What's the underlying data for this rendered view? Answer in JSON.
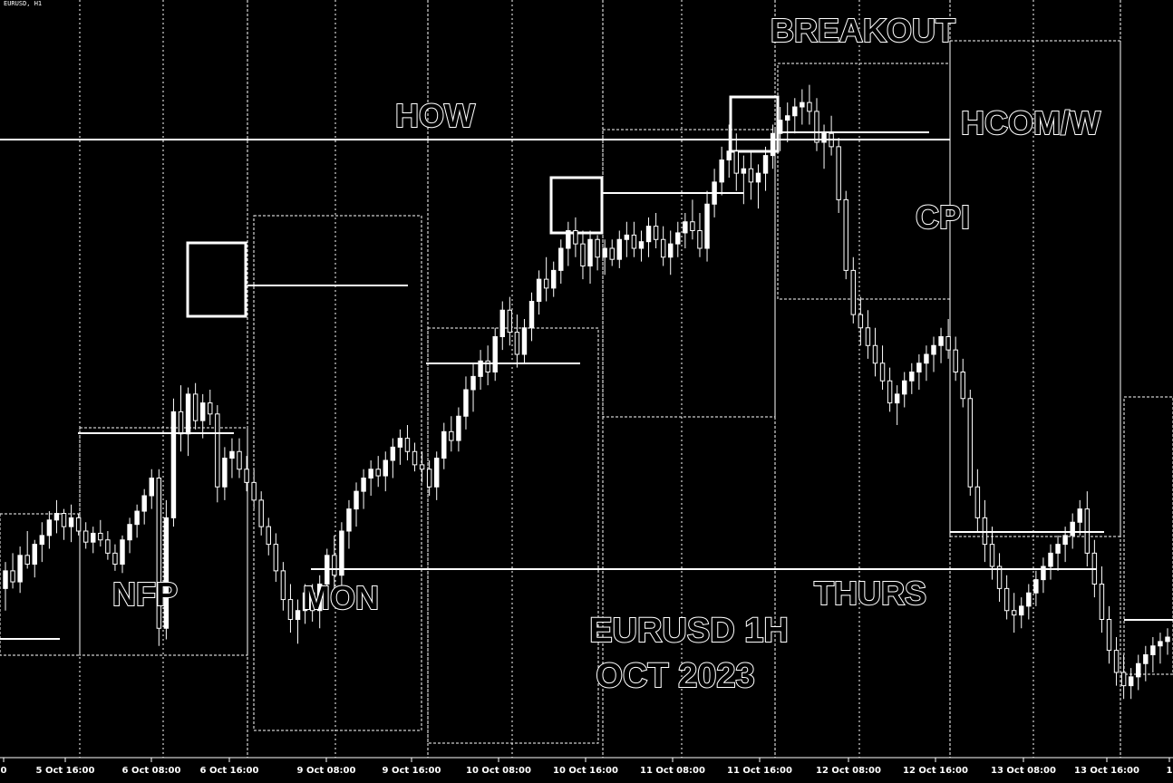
{
  "chart_data": {
    "type": "candlestick",
    "title": "EURUSD 1H",
    "subtitle": "OCT 2023",
    "watermark": "EURUSD, H1",
    "colors": {
      "background": "#000000",
      "foreground": "#ffffff"
    },
    "grid": "vertical dotted at session boundaries",
    "x_ticks": [
      "0",
      "5 Oct 16:00",
      "6 Oct 08:00",
      "6 Oct 16:00",
      "9 Oct 08:00",
      "9 Oct 16:00",
      "10 Oct 08:00",
      "10 Oct 16:00",
      "11 Oct 08:00",
      "11 Oct 16:00",
      "12 Oct 08:00",
      "12 Oct 16:00",
      "13 Oct 08:00",
      "13 Oct 16:00",
      "1"
    ],
    "annotations": [
      "NFP",
      "MON",
      "HOW",
      "BREAKOUT",
      "HCOM/W",
      "CPI",
      "THURS"
    ],
    "key_levels": [
      {
        "name": "HOW",
        "price": 1.0639
      },
      {
        "name": "Monday low",
        "price": 1.0525
      }
    ],
    "series": [
      {
        "name": "EURUSD",
        "ohlc": [
          [
            1.055,
            1.0562,
            1.054,
            1.0558
          ],
          [
            1.0558,
            1.0566,
            1.055,
            1.0553
          ],
          [
            1.0553,
            1.0569,
            1.0548,
            1.0565
          ],
          [
            1.0565,
            1.0576,
            1.0559,
            1.0561
          ],
          [
            1.0561,
            1.0572,
            1.0555,
            1.057
          ],
          [
            1.057,
            1.058,
            1.0562,
            1.0574
          ],
          [
            1.0574,
            1.0585,
            1.0568,
            1.0581
          ],
          [
            1.0581,
            1.059,
            1.0575,
            1.0584
          ],
          [
            1.0584,
            1.0586,
            1.0572,
            1.0578
          ],
          [
            1.0578,
            1.0588,
            1.0571,
            1.0582
          ],
          [
            1.0582,
            1.0584,
            1.0574,
            1.0576
          ],
          [
            1.0576,
            1.058,
            1.0568,
            1.0571
          ],
          [
            1.0571,
            1.0578,
            1.0566,
            1.0575
          ],
          [
            1.0575,
            1.0581,
            1.0569,
            1.0572
          ],
          [
            1.0572,
            1.0576,
            1.0563,
            1.0566
          ],
          [
            1.0566,
            1.057,
            1.0558,
            1.0561
          ],
          [
            1.0561,
            1.0574,
            1.0557,
            1.0572
          ],
          [
            1.0572,
            1.0582,
            1.0566,
            1.0579
          ],
          [
            1.0579,
            1.0588,
            1.0573,
            1.0585
          ],
          [
            1.0585,
            1.0595,
            1.0579,
            1.0592
          ],
          [
            1.0592,
            1.0604,
            1.0586,
            1.06
          ],
          [
            1.06,
            1.0604,
            1.0524,
            1.0532
          ],
          [
            1.0532,
            1.059,
            1.0527,
            1.0582
          ],
          [
            1.0582,
            1.0636,
            1.0578,
            1.063
          ],
          [
            1.063,
            1.0642,
            1.0612,
            1.062
          ],
          [
            1.062,
            1.0641,
            1.061,
            1.0638
          ],
          [
            1.0638,
            1.0643,
            1.0622,
            1.0626
          ],
          [
            1.0626,
            1.0638,
            1.0618,
            1.0634
          ],
          [
            1.0634,
            1.064,
            1.0624,
            1.0629
          ],
          [
            1.0629,
            1.0633,
            1.0589,
            1.0596
          ],
          [
            1.0596,
            1.0614,
            1.059,
            1.0609
          ],
          [
            1.0609,
            1.0618,
            1.06,
            1.0612
          ],
          [
            1.0612,
            1.0618,
            1.06,
            1.0604
          ],
          [
            1.0604,
            1.061,
            1.0594,
            1.0598
          ],
          [
            1.0598,
            1.0604,
            1.0586,
            1.059
          ],
          [
            1.059,
            1.0594,
            1.0574,
            1.0578
          ],
          [
            1.0578,
            1.0582,
            1.0565,
            1.057
          ],
          [
            1.057,
            1.0575,
            1.0553,
            1.0558
          ],
          [
            1.0558,
            1.0562,
            1.054,
            1.0545
          ],
          [
            1.0545,
            1.0552,
            1.053,
            1.0536
          ],
          [
            1.0536,
            1.0545,
            1.0525,
            1.054
          ],
          [
            1.054,
            1.0552,
            1.0534,
            1.0548
          ],
          [
            1.0548,
            1.0552,
            1.0535,
            1.054
          ],
          [
            1.054,
            1.0556,
            1.0532,
            1.0552
          ],
          [
            1.0552,
            1.0568,
            1.0546,
            1.0565
          ],
          [
            1.0565,
            1.0574,
            1.055,
            1.0556
          ],
          [
            1.0556,
            1.058,
            1.055,
            1.0576
          ],
          [
            1.0576,
            1.059,
            1.0568,
            1.0586
          ],
          [
            1.0586,
            1.0598,
            1.0578,
            1.0594
          ],
          [
            1.0594,
            1.0604,
            1.0586,
            1.06
          ],
          [
            1.06,
            1.0608,
            1.0592,
            1.0604
          ],
          [
            1.0604,
            1.061,
            1.0596,
            1.0601
          ],
          [
            1.0601,
            1.0612,
            1.0594,
            1.0608
          ],
          [
            1.0608,
            1.0618,
            1.06,
            1.0614
          ],
          [
            1.0614,
            1.0622,
            1.0606,
            1.0618
          ],
          [
            1.0618,
            1.0624,
            1.0608,
            1.0612
          ],
          [
            1.0612,
            1.0616,
            1.0603,
            1.0606
          ],
          [
            1.0606,
            1.0612,
            1.0598,
            1.0604
          ],
          [
            1.0604,
            1.0608,
            1.0592,
            1.0596
          ],
          [
            1.0596,
            1.0612,
            1.059,
            1.0609
          ],
          [
            1.0609,
            1.0625,
            1.0604,
            1.0621
          ],
          [
            1.0621,
            1.0628,
            1.0612,
            1.0617
          ],
          [
            1.0617,
            1.0632,
            1.0612,
            1.0628
          ],
          [
            1.0628,
            1.0646,
            1.0622,
            1.064
          ],
          [
            1.064,
            1.0652,
            1.063,
            1.0646
          ],
          [
            1.0646,
            1.0658,
            1.064,
            1.0653
          ],
          [
            1.0653,
            1.066,
            1.0642,
            1.0648
          ],
          [
            1.0648,
            1.0668,
            1.0644,
            1.0664
          ],
          [
            1.0664,
            1.068,
            1.0658,
            1.0676
          ],
          [
            1.0676,
            1.0682,
            1.066,
            1.0666
          ],
          [
            1.0666,
            1.0674,
            1.065,
            1.0656
          ],
          [
            1.0656,
            1.0672,
            1.0652,
            1.0668
          ],
          [
            1.0668,
            1.0684,
            1.0662,
            1.068
          ],
          [
            1.068,
            1.0694,
            1.0674,
            1.069
          ],
          [
            1.069,
            1.07,
            1.068,
            1.0686
          ],
          [
            1.0686,
            1.0698,
            1.0682,
            1.0694
          ],
          [
            1.0694,
            1.0708,
            1.0688,
            1.0704
          ],
          [
            1.0704,
            1.0716,
            1.0696,
            1.0712
          ],
          [
            1.0712,
            1.0718,
            1.07,
            1.0706
          ],
          [
            1.0706,
            1.0712,
            1.069,
            1.0696
          ],
          [
            1.0696,
            1.0712,
            1.0688,
            1.0708
          ],
          [
            1.0708,
            1.071,
            1.0694,
            1.07
          ],
          [
            1.07,
            1.0708,
            1.0692,
            1.0704
          ],
          [
            1.0704,
            1.0708,
            1.0696,
            1.0699
          ],
          [
            1.0699,
            1.0712,
            1.0695,
            1.0708
          ],
          [
            1.0708,
            1.0716,
            1.07,
            1.071
          ],
          [
            1.071,
            1.0716,
            1.07,
            1.0704
          ],
          [
            1.0704,
            1.0712,
            1.0698,
            1.0707
          ],
          [
            1.0707,
            1.0718,
            1.07,
            1.0714
          ],
          [
            1.0714,
            1.072,
            1.0704,
            1.0708
          ],
          [
            1.0708,
            1.0714,
            1.0696,
            1.07
          ],
          [
            1.07,
            1.0712,
            1.0692,
            1.0706
          ],
          [
            1.0706,
            1.0716,
            1.07,
            1.0711
          ],
          [
            1.0711,
            1.072,
            1.0704,
            1.0716
          ],
          [
            1.0716,
            1.0726,
            1.0708,
            1.0712
          ],
          [
            1.0712,
            1.072,
            1.07,
            1.0704
          ],
          [
            1.0704,
            1.073,
            1.0698,
            1.0724
          ],
          [
            1.0724,
            1.074,
            1.0718,
            1.0734
          ],
          [
            1.0734,
            1.075,
            1.0728,
            1.0744
          ],
          [
            1.0744,
            1.076,
            1.0736,
            1.0748
          ],
          [
            1.0748,
            1.0756,
            1.073,
            1.0738
          ],
          [
            1.0738,
            1.0746,
            1.0724,
            1.074
          ],
          [
            1.074,
            1.0748,
            1.0726,
            1.0734
          ],
          [
            1.0734,
            1.0742,
            1.0722,
            1.0738
          ],
          [
            1.0738,
            1.075,
            1.073,
            1.0746
          ],
          [
            1.0746,
            1.076,
            1.074,
            1.0756
          ],
          [
            1.0756,
            1.0768,
            1.0748,
            1.0762
          ],
          [
            1.0762,
            1.077,
            1.0752,
            1.0764
          ],
          [
            1.0764,
            1.0772,
            1.0756,
            1.0768
          ],
          [
            1.0768,
            1.0776,
            1.076,
            1.077
          ],
          [
            1.077,
            1.0778,
            1.076,
            1.0766
          ],
          [
            1.0766,
            1.0772,
            1.0748,
            1.0752
          ],
          [
            1.0752,
            1.076,
            1.074,
            1.0756
          ],
          [
            1.0756,
            1.0764,
            1.0746,
            1.075
          ],
          [
            1.075,
            1.0754,
            1.072,
            1.0726
          ],
          [
            1.0726,
            1.073,
            1.069,
            1.0694
          ],
          [
            1.0694,
            1.07,
            1.067,
            1.0674
          ],
          [
            1.0674,
            1.0682,
            1.066,
            1.0668
          ],
          [
            1.0668,
            1.0676,
            1.0654,
            1.066
          ],
          [
            1.066,
            1.0668,
            1.0646,
            1.0652
          ],
          [
            1.0652,
            1.066,
            1.064,
            1.0644
          ],
          [
            1.0644,
            1.065,
            1.063,
            1.0634
          ],
          [
            1.0634,
            1.0642,
            1.0624,
            1.0638
          ],
          [
            1.0638,
            1.0648,
            1.0632,
            1.0644
          ],
          [
            1.0644,
            1.0652,
            1.0638,
            1.0648
          ],
          [
            1.0648,
            1.0656,
            1.064,
            1.0652
          ],
          [
            1.0652,
            1.066,
            1.0644,
            1.0656
          ],
          [
            1.0656,
            1.0664,
            1.0648,
            1.066
          ],
          [
            1.066,
            1.0668,
            1.0652,
            1.0664
          ],
          [
            1.0664,
            1.0672,
            1.0654,
            1.0658
          ],
          [
            1.0658,
            1.0664,
            1.0644,
            1.0648
          ],
          [
            1.0648,
            1.0654,
            1.0632,
            1.0636
          ],
          [
            1.0636,
            1.064,
            1.0592,
            1.0596
          ],
          [
            1.0596,
            1.0604,
            1.0576,
            1.0582
          ],
          [
            1.0582,
            1.059,
            1.0562,
            1.057
          ],
          [
            1.057,
            1.0578,
            1.0554,
            1.056
          ],
          [
            1.056,
            1.0566,
            1.0544,
            1.055
          ],
          [
            1.055,
            1.0556,
            1.0536,
            1.054
          ],
          [
            1.054,
            1.0548,
            1.053,
            1.0538
          ],
          [
            1.0538,
            1.0546,
            1.0532,
            1.0542
          ],
          [
            1.0542,
            1.0552,
            1.0536,
            1.0548
          ],
          [
            1.0548,
            1.0558,
            1.0542,
            1.0554
          ],
          [
            1.0554,
            1.0564,
            1.0548,
            1.056
          ],
          [
            1.056,
            1.057,
            1.0554,
            1.0566
          ],
          [
            1.0566,
            1.0574,
            1.0558,
            1.057
          ],
          [
            1.057,
            1.0578,
            1.0562,
            1.0574
          ],
          [
            1.0574,
            1.0584,
            1.0568,
            1.058
          ],
          [
            1.058,
            1.059,
            1.0574,
            1.0586
          ],
          [
            1.0586,
            1.0594,
            1.056,
            1.0566
          ],
          [
            1.0566,
            1.0572,
            1.0546,
            1.0552
          ],
          [
            1.0552,
            1.056,
            1.053,
            1.0536
          ],
          [
            1.0536,
            1.0542,
            1.0516,
            1.0522
          ],
          [
            1.0522,
            1.0528,
            1.0506,
            1.0512
          ],
          [
            1.0512,
            1.052,
            1.05,
            1.0506
          ],
          [
            1.0506,
            1.0514,
            1.05,
            1.051
          ],
          [
            1.051,
            1.052,
            1.0504,
            1.0516
          ],
          [
            1.0516,
            1.0524,
            1.0508,
            1.052
          ],
          [
            1.052,
            1.0528,
            1.0512,
            1.0524
          ],
          [
            1.0524,
            1.053,
            1.0516,
            1.0526
          ],
          [
            1.0526,
            1.0532,
            1.052,
            1.0528
          ]
        ]
      }
    ]
  }
}
